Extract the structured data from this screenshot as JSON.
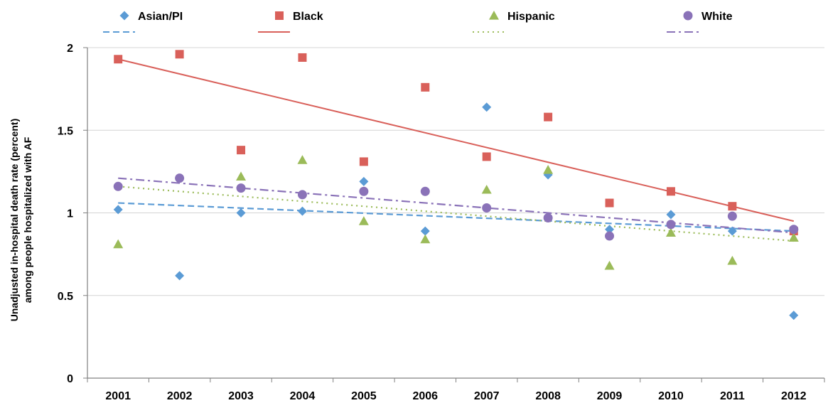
{
  "chart_data": {
    "type": "scatter",
    "title": "",
    "xlabel": "",
    "ylabel": "Unadjusted in-hospital death rate (percent) among people hospitalized with AF",
    "ylabel_lines": [
      "Unadjusted in-hospital death rate (percent)",
      "among people hospitalized with AF"
    ],
    "categories": [
      "2001",
      "2002",
      "2003",
      "2004",
      "2005",
      "2006",
      "2007",
      "2008",
      "2009",
      "2010",
      "2011",
      "2012"
    ],
    "ylim": [
      0,
      2
    ],
    "yticks": [
      0,
      0.5,
      1,
      1.5,
      2
    ],
    "ytick_labels": [
      "0",
      "0.5",
      "1",
      "1.5",
      "2"
    ],
    "grid": "horizontal",
    "legend_position": "top",
    "series": [
      {
        "name": "Asian/PI",
        "color": "#5b9bd5",
        "marker": "diamond",
        "values": [
          1.02,
          0.62,
          1.0,
          1.01,
          1.19,
          0.89,
          1.64,
          1.23,
          0.9,
          0.99,
          0.89,
          0.38
        ],
        "trend": {
          "style": "dashed",
          "start": 1.06,
          "end": 0.89
        }
      },
      {
        "name": "Black",
        "color": "#d9605a",
        "marker": "square",
        "values": [
          1.93,
          1.96,
          1.38,
          1.94,
          1.31,
          1.76,
          1.34,
          1.58,
          1.06,
          1.13,
          1.04,
          0.89
        ],
        "trend": {
          "style": "solid",
          "start": 1.93,
          "end": 0.95
        }
      },
      {
        "name": "Hispanic",
        "color": "#9bbb59",
        "marker": "triangle",
        "values": [
          0.81,
          null,
          1.22,
          1.32,
          0.95,
          0.84,
          1.14,
          1.26,
          0.68,
          0.88,
          0.71,
          0.85
        ],
        "trend": {
          "style": "dotted",
          "start": 1.16,
          "end": 0.83
        }
      },
      {
        "name": "White",
        "color": "#8a72b8",
        "marker": "circle",
        "values": [
          1.16,
          1.21,
          1.15,
          1.11,
          1.13,
          1.13,
          1.03,
          0.97,
          0.86,
          0.93,
          0.98,
          0.9
        ],
        "trend": {
          "style": "dashdot",
          "start": 1.21,
          "end": 0.88
        }
      }
    ]
  }
}
